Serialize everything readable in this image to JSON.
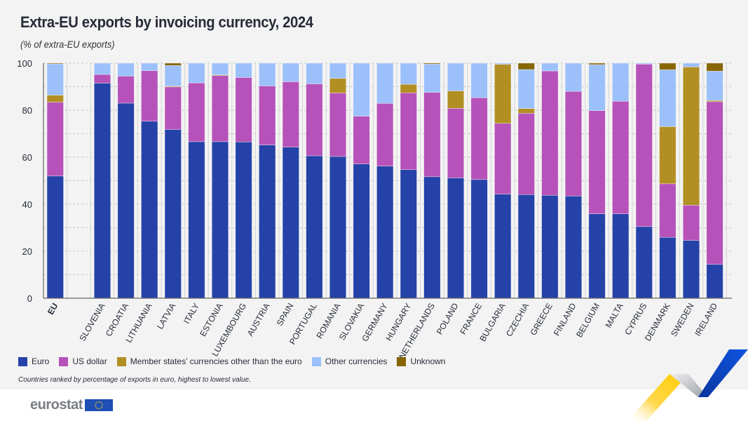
{
  "title": "Extra-EU exports by invoicing currency, 2024",
  "subtitle": "(% of extra-EU exports)",
  "legend": [
    {
      "label": "Euro",
      "color": "#2542a8"
    },
    {
      "label": "US dollar",
      "color": "#b652b9"
    },
    {
      "label": "Member states’ currencies other than the euro",
      "color": "#b18f22"
    },
    {
      "label": "Other currencies",
      "color": "#9cc0fa"
    },
    {
      "label": "Unknown",
      "color": "#876600"
    }
  ],
  "footnote": "Countries ranked by percentage of exports in euro, highest to lowest value.",
  "logo_text": "eurostat",
  "chart_data": {
    "type": "bar",
    "stacked": true,
    "title": "Extra-EU exports by invoicing currency, 2024",
    "ylabel": "% of extra-EU exports",
    "xlabel": "",
    "ylim": [
      0,
      100
    ],
    "yticks": [
      0,
      20,
      40,
      60,
      80,
      100
    ],
    "grid": true,
    "legend_position": "bottom",
    "categories": [
      "EU",
      "SLOVENIA",
      "CROATIA",
      "LITHUANIA",
      "LATVIA",
      "ITALY",
      "ESTONIA",
      "LUXEMBOURG",
      "AUSTRIA",
      "SPAIN",
      "PORTUGAL",
      "ROMANIA",
      "SLOVAKIA",
      "GERMANY",
      "HUNGARY",
      "NETHERLANDS",
      "POLAND",
      "FRANCE",
      "BULGARIA",
      "CZECHIA",
      "GREECE",
      "FINLAND",
      "BELGIUM",
      "MALTA",
      "CYPRUS",
      "DENMARK",
      "SWEDEN",
      "IRELAND"
    ],
    "series": [
      {
        "name": "Euro",
        "color": "#2542a8",
        "values": [
          52.0,
          91.5,
          83.0,
          75.3,
          71.8,
          66.6,
          66.6,
          66.5,
          65.2,
          64.3,
          60.6,
          60.3,
          57.1,
          56.2,
          54.7,
          51.7,
          51.2,
          50.5,
          44.3,
          44.1,
          43.8,
          43.5,
          35.9,
          35.9,
          30.5,
          25.9,
          24.6,
          14.4
        ]
      },
      {
        "name": "US dollar",
        "color": "#b652b9",
        "values": [
          31.4,
          3.7,
          11.5,
          21.5,
          18.1,
          25.0,
          28.1,
          27.4,
          25.1,
          27.8,
          30.6,
          27.0,
          20.3,
          26.7,
          32.7,
          35.9,
          29.6,
          34.8,
          30.1,
          34.6,
          52.9,
          44.5,
          43.9,
          47.9,
          69.1,
          22.8,
          15.0,
          69.2
        ]
      },
      {
        "name": "Member states’ currencies other than the euro",
        "color": "#b18f22",
        "values": [
          3.0,
          0,
          0,
          0,
          0.3,
          0,
          0.3,
          0,
          0,
          0,
          0,
          6.2,
          0,
          0,
          3.6,
          0,
          7.4,
          0,
          25.1,
          2.0,
          0,
          0,
          0,
          0,
          0,
          24.3,
          58.8,
          0.5
        ]
      },
      {
        "name": "Other currencies",
        "color": "#9cc0fa",
        "values": [
          13.3,
          4.8,
          5.5,
          3.2,
          8.8,
          8.4,
          5.0,
          6.1,
          9.7,
          7.9,
          8.8,
          6.5,
          22.6,
          17.1,
          9.0,
          12.0,
          11.8,
          14.7,
          0.5,
          16.6,
          3.3,
          12.0,
          19.6,
          16.2,
          0.4,
          24.2,
          1.6,
          12.5
        ]
      },
      {
        "name": "Unknown",
        "color": "#876600",
        "values": [
          0.3,
          0,
          0,
          0,
          1.0,
          0,
          0,
          0,
          0,
          0,
          0,
          0,
          0,
          0,
          0,
          0.4,
          0,
          0,
          0,
          2.7,
          0,
          0,
          0.6,
          0,
          0,
          2.8,
          0,
          3.4
        ]
      }
    ]
  }
}
